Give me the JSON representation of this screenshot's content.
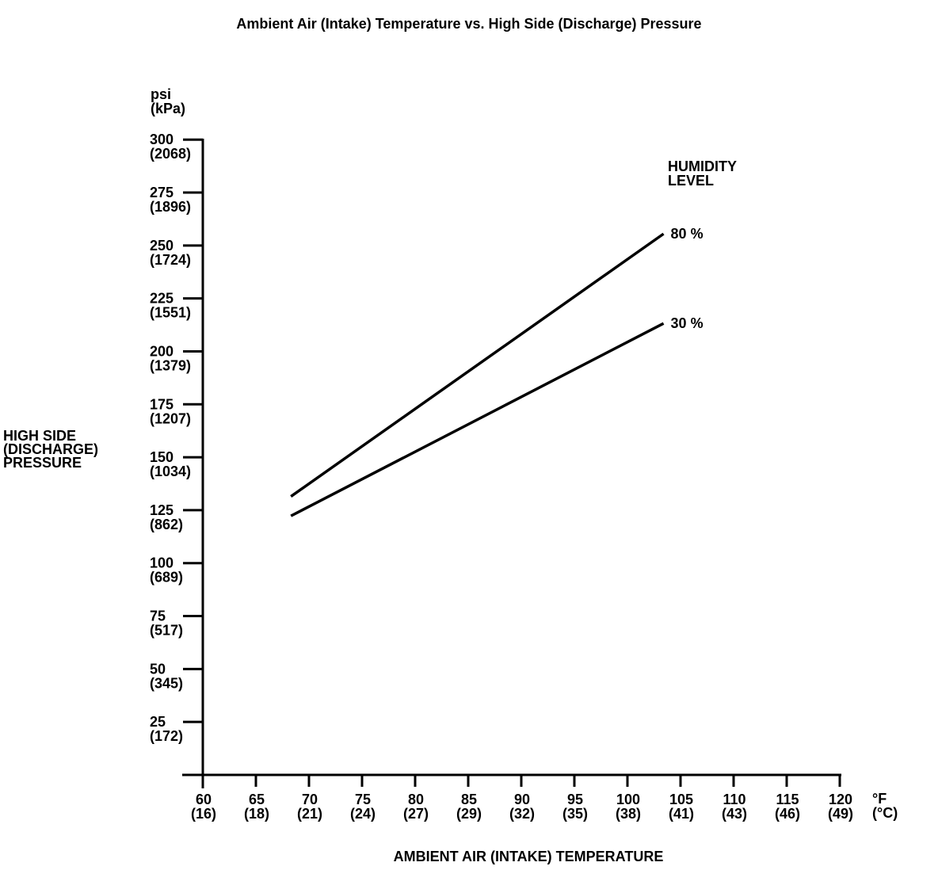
{
  "chart_data": {
    "type": "line",
    "title": "Ambient Air (Intake) Temperature vs. High Side (Discharge) Pressure",
    "background": "#ffffff",
    "line_color": "#000000",
    "grid": false,
    "legend_position": "right-of-line-ends",
    "legend_title_lines": [
      "HUMIDITY",
      "LEVEL"
    ],
    "x_axis": {
      "title": "AMBIENT AIR (INTAKE) TEMPERATURE",
      "unit_lines": [
        "°F",
        "(°C)"
      ],
      "range_f": [
        60,
        120
      ],
      "ticks": [
        {
          "f": 60,
          "c": 16
        },
        {
          "f": 65,
          "c": 18
        },
        {
          "f": 70,
          "c": 21
        },
        {
          "f": 75,
          "c": 24
        },
        {
          "f": 80,
          "c": 27
        },
        {
          "f": 85,
          "c": 29
        },
        {
          "f": 90,
          "c": 32
        },
        {
          "f": 95,
          "c": 35
        },
        {
          "f": 100,
          "c": 38
        },
        {
          "f": 105,
          "c": 41
        },
        {
          "f": 110,
          "c": 43
        },
        {
          "f": 115,
          "c": 46
        },
        {
          "f": 120,
          "c": 49
        }
      ]
    },
    "y_axis": {
      "title_lines": [
        "HIGH SIDE",
        "(DISCHARGE)",
        "PRESSURE"
      ],
      "unit_lines": [
        "psi",
        "(kPa)"
      ],
      "range_psi": [
        0,
        300
      ],
      "ticks": [
        {
          "psi": 25,
          "kpa": 172
        },
        {
          "psi": 50,
          "kpa": 345
        },
        {
          "psi": 75,
          "kpa": 517
        },
        {
          "psi": 100,
          "kpa": 689
        },
        {
          "psi": 125,
          "kpa": 862
        },
        {
          "psi": 150,
          "kpa": 1034
        },
        {
          "psi": 175,
          "kpa": 1207
        },
        {
          "psi": 200,
          "kpa": 1379
        },
        {
          "psi": 225,
          "kpa": 1551
        },
        {
          "psi": 250,
          "kpa": 1724
        },
        {
          "psi": 275,
          "kpa": 1896
        },
        {
          "psi": 300,
          "kpa": 2068
        }
      ]
    },
    "series": [
      {
        "name": "80 %",
        "points": [
          {
            "f": 68.3,
            "psi": 131.5
          },
          {
            "f": 103.4,
            "psi": 255.5
          }
        ]
      },
      {
        "name": "30 %",
        "points": [
          {
            "f": 68.3,
            "psi": 122.3
          },
          {
            "f": 103.4,
            "psi": 213.2
          }
        ]
      }
    ]
  }
}
